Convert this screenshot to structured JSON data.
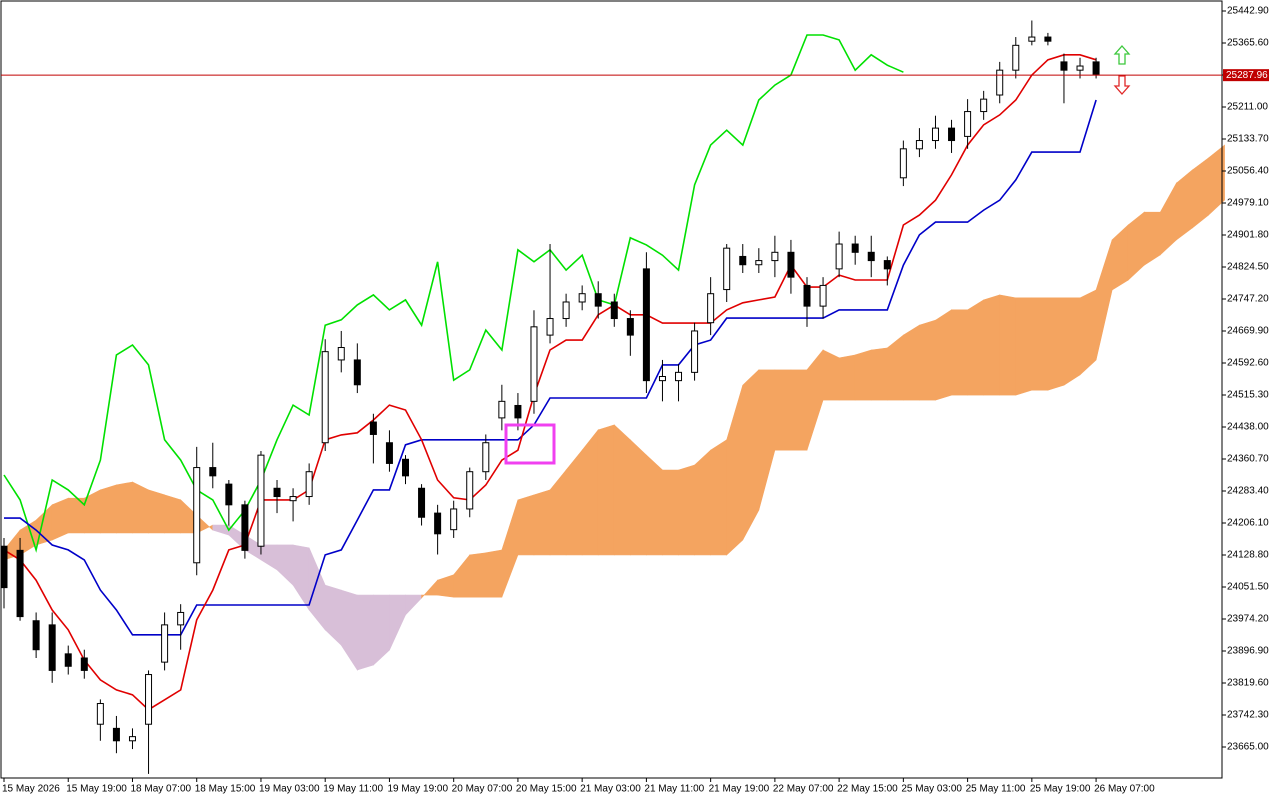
{
  "chart_data": {
    "type": "candlestick",
    "open": [
      24150,
      24140,
      23970,
      23960,
      23890,
      23880,
      23720,
      23710,
      23680,
      23720,
      23870,
      23960,
      24110,
      24340,
      24300,
      24250,
      24150,
      24290,
      24260,
      24270,
      24400,
      24600,
      24600,
      24450,
      24400,
      24360,
      24290,
      24230,
      24190,
      24240,
      24330,
      24460,
      24490,
      24500,
      24660,
      24700,
      24740,
      24760,
      24740,
      24700,
      24820,
      24550,
      24550,
      24570,
      24690,
      24770,
      24850,
      24830,
      24840,
      24860,
      24780,
      24730,
      24820,
      24880,
      24860,
      24840,
      25040,
      25110,
      25130,
      25160,
      25140,
      25200,
      25240,
      25300,
      25370,
      25380,
      25320,
      25300,
      25320
    ],
    "high": [
      24170,
      24170,
      23990,
      23990,
      23910,
      23900,
      23780,
      23740,
      23710,
      23850,
      23990,
      24010,
      24390,
      24400,
      24310,
      24260,
      24380,
      24310,
      24290,
      24350,
      24650,
      24670,
      24640,
      24470,
      24430,
      24370,
      24300,
      24250,
      24260,
      24340,
      24420,
      24540,
      24520,
      24720,
      24880,
      24760,
      24780,
      24790,
      24760,
      24720,
      24860,
      24600,
      24590,
      24690,
      24800,
      24880,
      24880,
      24870,
      24900,
      24890,
      24800,
      24800,
      24910,
      24900,
      24900,
      24850,
      25130,
      25160,
      25190,
      25180,
      25230,
      25250,
      25320,
      25380,
      25420,
      25390,
      25340,
      25330,
      25330
    ],
    "low": [
      24000,
      23970,
      23880,
      23820,
      23840,
      23830,
      23680,
      23650,
      23660,
      23600,
      23850,
      23900,
      24080,
      24290,
      24200,
      24120,
      24130,
      24230,
      24210,
      24250,
      24380,
      24570,
      24520,
      24350,
      24330,
      24300,
      24200,
      24130,
      24170,
      24220,
      24310,
      24430,
      24430,
      24470,
      24640,
      24680,
      24720,
      24700,
      24680,
      24610,
      24520,
      24500,
      24500,
      24550,
      24660,
      24740,
      24810,
      24810,
      24800,
      24760,
      24680,
      24700,
      24800,
      24830,
      24800,
      24780,
      25020,
      25090,
      25110,
      25100,
      25110,
      25180,
      25220,
      25280,
      25360,
      25360,
      25220,
      25280,
      25280
    ],
    "close": [
      24050,
      23980,
      23900,
      23850,
      23860,
      23850,
      23770,
      23680,
      23690,
      23840,
      23960,
      23990,
      24340,
      24320,
      24250,
      24140,
      24370,
      24270,
      24270,
      24330,
      24620,
      24630,
      24540,
      24420,
      24350,
      24320,
      24220,
      24180,
      24240,
      24330,
      24400,
      24500,
      24460,
      24680,
      24700,
      24740,
      24760,
      24730,
      24700,
      24660,
      24550,
      24560,
      24570,
      24670,
      24760,
      24870,
      24830,
      24840,
      24860,
      24800,
      24730,
      24780,
      24880,
      24860,
      24840,
      24820,
      25110,
      25130,
      25160,
      25130,
      25200,
      25230,
      25300,
      25360,
      25380,
      25370,
      25300,
      25310,
      25290
    ],
    "up_color": "#ffffff",
    "down_color": "#000000",
    "lines": [
      {
        "color": "#00e000",
        "values": [
          24322,
          24262,
          24141,
          24310,
          24286,
          24250,
          24358,
          24612,
          24636,
          24588,
          24407,
          24358,
          24286,
          24262,
          24189,
          24237,
          24310,
          24407,
          24491,
          24467,
          24684,
          24697,
          24733,
          24757,
          24721,
          24745,
          24684,
          24837,
          24551,
          24576,
          24672,
          24624,
          24866,
          24837,
          24866,
          24817,
          24853,
          24745,
          24733,
          24895,
          24878,
          24853,
          24817,
          25023,
          25119,
          25155,
          25119,
          25228,
          25264,
          25288,
          25385,
          25385,
          25373,
          25300,
          25337,
          25312,
          25295,
          null,
          null,
          null,
          null,
          null,
          null,
          null,
          null,
          null,
          null,
          null,
          null
        ]
      },
      {
        "color": "#0000c8",
        "values": [
          24218,
          24218,
          24189,
          24153,
          24141,
          24117,
          24044,
          23996,
          23936,
          23936,
          23936,
          23936,
          24008,
          24008,
          24008,
          24008,
          24008,
          24008,
          24008,
          24008,
          24129,
          24141,
          24213,
          24286,
          24286,
          24395,
          24407,
          24407,
          24407,
          24407,
          24407,
          24407,
          24407,
          24443,
          24508,
          24508,
          24508,
          24508,
          24508,
          24508,
          24508,
          24588,
          24588,
          24636,
          24648,
          24701,
          24701,
          24701,
          24701,
          24701,
          24701,
          24701,
          24721,
          24721,
          24721,
          24721,
          24829,
          24902,
          24933,
          24933,
          24933,
          24962,
          24986,
          25035,
          25102,
          25102,
          25102,
          25102,
          25228
        ]
      },
      {
        "color": "#e00000",
        "values": [
          24141,
          24117,
          24068,
          23996,
          23948,
          23875,
          23827,
          23803,
          23791,
          23755,
          23779,
          23803,
          23972,
          24044,
          24141,
          24153,
          24262,
          24262,
          24262,
          24286,
          24407,
          24419,
          24424,
          24455,
          24491,
          24479,
          24407,
          24310,
          24267,
          24262,
          24298,
          24358,
          24382,
          24515,
          24624,
          24648,
          24648,
          24709,
          24733,
          24709,
          24709,
          24689,
          24689,
          24689,
          24689,
          24721,
          24738,
          24745,
          24752,
          24829,
          24776,
          24776,
          24805,
          24793,
          24793,
          24793,
          24926,
          24950,
          24986,
          25047,
          25119,
          25168,
          25192,
          25228,
          25288,
          25325,
          25337,
          25337,
          25325
        ]
      }
    ],
    "cloud": {
      "bull_color": "#f4a460",
      "bear_color": "#d8bfd8",
      "span_a": [
        24141,
        24189,
        24213,
        24250,
        24266,
        24266,
        24286,
        24298,
        24305,
        24286,
        24274,
        24262,
        24225,
        24189,
        24177,
        24141,
        24117,
        24093,
        24056,
        23996,
        23948,
        23911,
        23851,
        23863,
        23899,
        23984,
        24025,
        24068,
        24081,
        24129,
        24134,
        24141,
        24262,
        24274,
        24286,
        24334,
        24382,
        24431,
        24443,
        24407,
        24370,
        24334,
        24334,
        24346,
        24382,
        24407,
        24539,
        24576,
        24576,
        24576,
        24576,
        24624,
        24605,
        24612,
        24624,
        24629,
        24660,
        24684,
        24696,
        24721,
        24721,
        24745,
        24757,
        24750,
        24750,
        24750,
        24750,
        24750,
        24769,
        24890,
        24926,
        24957,
        24957,
        25027,
        25059,
        25088,
        25119
      ],
      "span_b": [
        24117,
        24129,
        24153,
        24165,
        24182,
        24182,
        24182,
        24182,
        24182,
        24182,
        24182,
        24182,
        24182,
        24201,
        24201,
        24177,
        24153,
        24153,
        24153,
        24146,
        24056,
        24044,
        24032,
        24032,
        24032,
        24032,
        24032,
        24032,
        24027,
        24027,
        24027,
        24027,
        24129,
        24129,
        24129,
        24129,
        24129,
        24129,
        24129,
        24129,
        24129,
        24129,
        24129,
        24129,
        24129,
        24129,
        24165,
        24237,
        24382,
        24382,
        24382,
        24503,
        24503,
        24503,
        24503,
        24503,
        24503,
        24503,
        24503,
        24515,
        24515,
        24515,
        24515,
        24515,
        24527,
        24527,
        24539,
        24564,
        24600,
        24769,
        24793,
        24829,
        24854,
        24890,
        24919,
        24950,
        24986
      ]
    },
    "ylim": [
      23590.1,
      25469.5
    ],
    "yticks": [
      {
        "value": 25442.9,
        "label": "25442.90"
      },
      {
        "value": 25365.6,
        "label": "25365.60"
      },
      {
        "value": 25288.3,
        "label": "25288.30"
      },
      {
        "value": 25211,
        "label": "25211.00"
      },
      {
        "value": 25133.7,
        "label": "25133.70"
      },
      {
        "value": 25056.4,
        "label": "25056.40"
      },
      {
        "value": 24979.1,
        "label": "24979.10"
      },
      {
        "value": 24901.8,
        "label": "24901.80"
      },
      {
        "value": 24824.5,
        "label": "24824.50"
      },
      {
        "value": 24747.2,
        "label": "24747.20"
      },
      {
        "value": 24669.9,
        "label": "24669.90"
      },
      {
        "value": 24592.6,
        "label": "24592.60"
      },
      {
        "value": 24515.3,
        "label": "24515.30"
      },
      {
        "value": 24438,
        "label": "24438.00"
      },
      {
        "value": 24360.7,
        "label": "24360.70"
      },
      {
        "value": 24283.4,
        "label": "24283.40"
      },
      {
        "value": 24206.1,
        "label": "24206.10"
      },
      {
        "value": 24128.8,
        "label": "24128.80"
      },
      {
        "value": 24051.5,
        "label": "24051.50"
      },
      {
        "value": 23974.2,
        "label": "23974.20"
      },
      {
        "value": 23896.9,
        "label": "23896.90"
      },
      {
        "value": 23819.6,
        "label": "23819.60"
      },
      {
        "value": 23742.3,
        "label": "23742.30"
      },
      {
        "value": 23665,
        "label": "23665.00"
      }
    ],
    "xticks": [
      {
        "value": 0,
        "label": "15 May 2026"
      },
      {
        "value": 4,
        "label": "15 May 19:00"
      },
      {
        "value": 8,
        "label": "18 May 07:00"
      },
      {
        "value": 12,
        "label": "18 May 15:00"
      },
      {
        "value": 16,
        "label": "19 May 03:00"
      },
      {
        "value": 20,
        "label": "19 May 11:00"
      },
      {
        "value": 24,
        "label": "19 May 19:00"
      },
      {
        "value": 28,
        "label": "20 May 07:00"
      },
      {
        "value": 32,
        "label": "20 May 15:00"
      },
      {
        "value": 36,
        "label": "21 May 03:00"
      },
      {
        "value": 40,
        "label": "21 May 11:00"
      },
      {
        "value": 44,
        "label": "21 May 19:00"
      },
      {
        "value": 48,
        "label": "22 May 07:00"
      },
      {
        "value": 52,
        "label": "22 May 15:00"
      },
      {
        "value": 56,
        "label": "25 May 03:00"
      },
      {
        "value": 60,
        "label": "25 May 11:00"
      },
      {
        "value": 64,
        "label": "25 May 19:00"
      },
      {
        "value": 68,
        "label": "26 May 07:00"
      }
    ],
    "last_price": 25287.96,
    "last_price_color": "#c00000"
  }
}
